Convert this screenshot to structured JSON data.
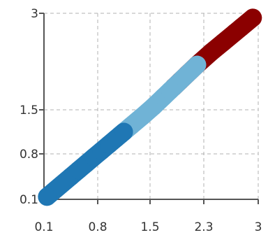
{
  "chart_data": {
    "type": "scatter",
    "title": "",
    "xlabel": "",
    "ylabel": "",
    "xlim": [
      0.1,
      3
    ],
    "ylim": [
      0.1,
      3
    ],
    "x_ticks": [
      "0.1",
      "0.8",
      "1.5",
      "2.3",
      "3"
    ],
    "y_ticks": [
      "0.1",
      "0.8",
      "1.5",
      "3"
    ],
    "grid": true,
    "legend": "none",
    "series": [
      {
        "color": "#8b0000",
        "x": [
          1.85,
          1.95,
          2.05,
          2.2,
          2.4,
          2.55,
          2.7,
          2.78,
          2.93
        ],
        "y": [
          1.85,
          1.95,
          2.05,
          2.2,
          2.4,
          2.55,
          2.7,
          2.78,
          2.93
        ]
      },
      {
        "color": "#70b3d6",
        "x": [
          1.1,
          1.25,
          1.4,
          1.55,
          1.7,
          1.8,
          1.9,
          2.0,
          2.1,
          2.2
        ],
        "y": [
          1.1,
          1.25,
          1.4,
          1.55,
          1.7,
          1.8,
          1.9,
          2.0,
          2.1,
          2.2
        ]
      },
      {
        "color": "#1f77b4",
        "x": [
          0.14,
          0.45,
          0.55,
          0.65,
          0.75,
          0.85,
          0.95,
          1.05,
          1.15
        ],
        "y": [
          0.14,
          0.45,
          0.55,
          0.65,
          0.75,
          0.85,
          0.95,
          1.05,
          1.15
        ]
      }
    ]
  }
}
